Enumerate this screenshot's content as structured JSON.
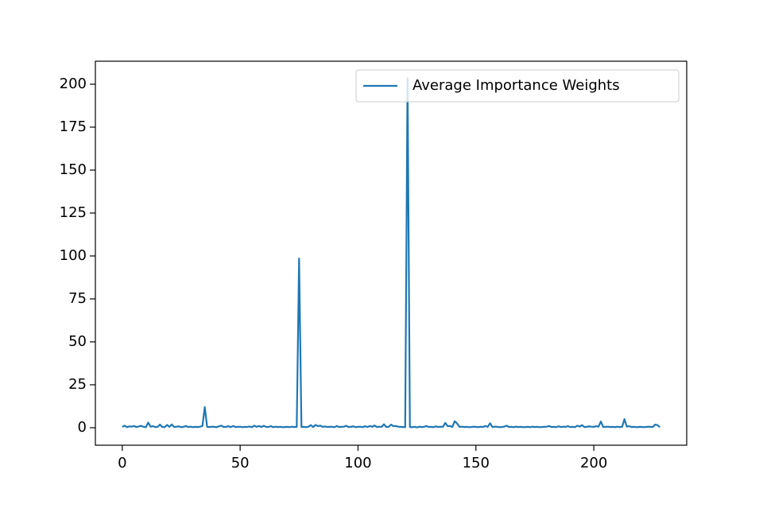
{
  "chart_data": {
    "type": "line",
    "x": [
      0,
      1,
      2,
      3,
      4,
      5,
      6,
      7,
      8,
      9,
      10,
      11,
      12,
      13,
      14,
      15,
      16,
      17,
      18,
      19,
      20,
      21,
      22,
      23,
      24,
      25,
      26,
      27,
      28,
      29,
      30,
      31,
      32,
      33,
      34,
      35,
      36,
      37,
      38,
      39,
      40,
      41,
      42,
      43,
      44,
      45,
      46,
      47,
      48,
      49,
      50,
      51,
      52,
      53,
      54,
      55,
      56,
      57,
      58,
      59,
      60,
      61,
      62,
      63,
      64,
      65,
      66,
      67,
      68,
      69,
      70,
      71,
      72,
      73,
      74,
      75,
      76,
      77,
      78,
      79,
      80,
      81,
      82,
      83,
      84,
      85,
      86,
      87,
      88,
      89,
      90,
      91,
      92,
      93,
      94,
      95,
      96,
      97,
      98,
      99,
      100,
      101,
      102,
      103,
      104,
      105,
      106,
      107,
      108,
      109,
      110,
      111,
      112,
      113,
      114,
      115,
      116,
      117,
      118,
      119,
      120,
      121,
      122,
      123,
      124,
      125,
      126,
      127,
      128,
      129,
      130,
      131,
      132,
      133,
      134,
      135,
      136,
      137,
      138,
      139,
      140,
      141,
      142,
      143,
      144,
      145,
      146,
      147,
      148,
      149,
      150,
      151,
      152,
      153,
      154,
      155,
      156,
      157,
      158,
      159,
      160,
      161,
      162,
      163,
      164,
      165,
      166,
      167,
      168,
      169,
      170,
      171,
      172,
      173,
      174,
      175,
      176,
      177,
      178,
      179,
      180,
      181,
      182,
      183,
      184,
      185,
      186,
      187,
      188,
      189,
      190,
      191,
      192,
      193,
      194,
      195,
      196,
      197,
      198,
      199,
      200,
      201,
      202,
      203,
      204,
      205,
      206,
      207,
      208,
      209,
      210,
      211,
      212,
      213,
      214,
      215,
      216,
      217,
      218,
      219,
      220,
      221,
      222,
      223,
      224,
      225,
      226,
      227,
      228
    ],
    "series": [
      {
        "name": "Average Importance Weights",
        "color": "#1f77b4",
        "values": [
          0.5,
          1.2,
          0.3,
          0.8,
          0.6,
          1.0,
          0.4,
          0.7,
          1.1,
          0.5,
          0.3,
          3.0,
          0.6,
          0.9,
          0.4,
          0.5,
          1.8,
          0.4,
          0.3,
          1.6,
          0.5,
          1.9,
          0.4,
          0.6,
          0.8,
          0.3,
          0.5,
          1.0,
          0.4,
          0.6,
          0.3,
          0.5,
          0.4,
          0.6,
          1.0,
          12.0,
          0.5,
          0.4,
          0.6,
          0.5,
          0.3,
          0.8,
          1.2,
          0.4,
          0.5,
          0.9,
          0.3,
          1.0,
          0.4,
          0.5,
          0.6,
          0.3,
          0.5,
          0.4,
          0.7,
          0.3,
          1.2,
          0.5,
          1.0,
          0.4,
          1.1,
          0.5,
          0.4,
          0.9,
          0.3,
          0.6,
          0.4,
          0.5,
          0.3,
          0.4,
          0.5,
          0.3,
          0.6,
          0.4,
          0.5,
          98.5,
          0.4,
          0.5,
          0.3,
          0.6,
          1.5,
          0.4,
          1.6,
          0.9,
          1.2,
          0.5,
          0.7,
          0.4,
          0.6,
          0.5,
          0.3,
          1.0,
          0.4,
          0.5,
          0.6,
          1.1,
          0.4,
          0.5,
          0.8,
          0.3,
          0.5,
          0.6,
          0.3,
          0.9,
          0.4,
          1.0,
          0.5,
          1.3,
          0.4,
          0.6,
          0.5,
          2.0,
          0.4,
          0.5,
          1.8,
          0.9,
          1.0,
          0.6,
          0.5,
          0.4,
          0.3,
          203.5,
          0.4,
          0.3,
          0.5,
          0.2,
          0.6,
          0.4,
          0.5,
          1.0,
          0.4,
          0.5,
          0.3,
          0.8,
          0.4,
          0.6,
          0.5,
          2.8,
          0.9,
          1.0,
          0.4,
          3.8,
          2.5,
          0.5,
          0.6,
          0.4,
          0.5,
          0.3,
          0.4,
          0.6,
          0.5,
          0.3,
          0.6,
          0.4,
          1.0,
          0.5,
          2.6,
          0.4,
          0.6,
          0.5,
          0.3,
          0.4,
          0.6,
          1.2,
          0.4,
          0.5,
          0.3,
          0.6,
          0.4,
          0.5,
          0.3,
          0.4,
          0.5,
          0.3,
          0.6,
          0.4,
          0.5,
          0.3,
          0.4,
          0.5,
          0.6,
          1.0,
          0.4,
          0.5,
          0.3,
          0.8,
          0.4,
          0.6,
          0.5,
          0.9,
          0.4,
          0.5,
          0.3,
          1.2,
          0.6,
          1.5,
          0.4,
          0.5,
          0.8,
          0.6,
          0.5,
          0.9,
          0.6,
          3.6,
          0.4,
          0.5,
          0.6,
          0.4,
          0.5,
          0.3,
          0.6,
          0.4,
          0.5,
          5.0,
          0.6,
          0.9,
          0.4,
          0.5,
          0.3,
          0.4,
          0.5,
          0.3,
          0.4,
          0.6,
          0.5,
          0.4,
          1.8,
          1.5,
          0.3
        ]
      }
    ],
    "xlim": [
      -11.4,
      239.4
    ],
    "xticks": [
      0,
      50,
      100,
      150,
      200
    ],
    "ylim": [
      -10.2,
      213.4
    ],
    "yticks": [
      0,
      25,
      50,
      75,
      100,
      125,
      150,
      175,
      200
    ],
    "legend": "upper right",
    "grid": false
  }
}
